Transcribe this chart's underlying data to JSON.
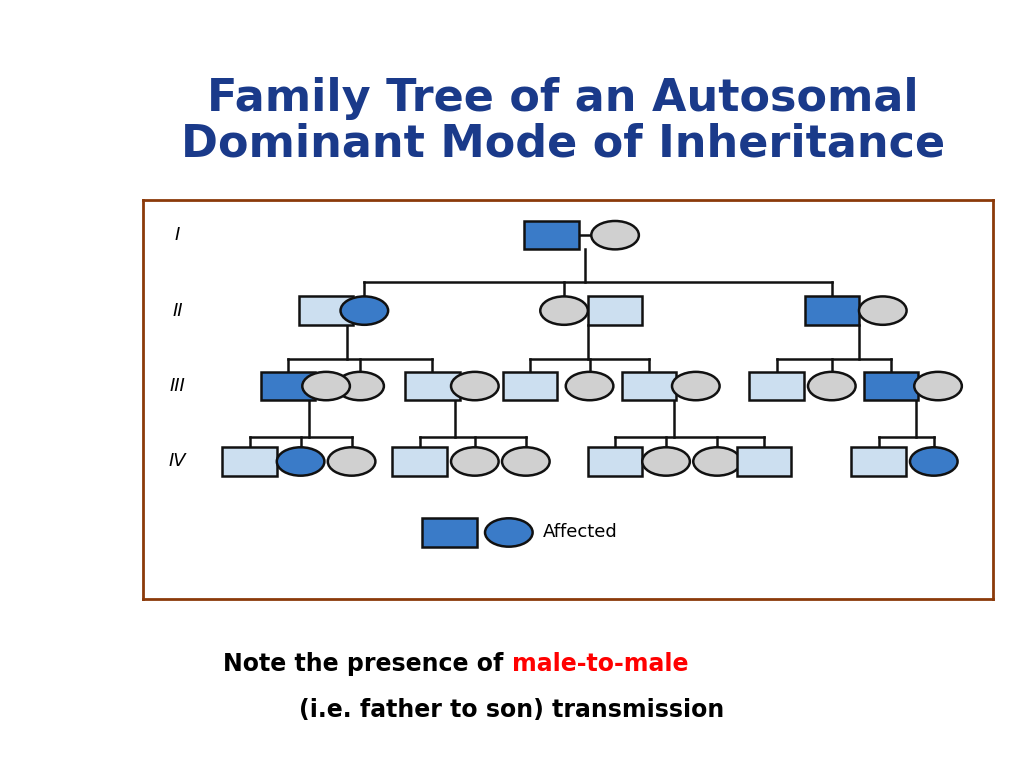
{
  "title_line1": "Family Tree of an Autosomal",
  "title_line2": "Dominant Mode of Inheritance",
  "title_color": "#1a3a8a",
  "title_fontsize": 32,
  "note_line1_black": "Note the presence of ",
  "note_line1_red": "male-to-male",
  "note_line2": "(i.e. father to son) transmission",
  "note_fontsize": 17,
  "bg_color": "#ffffff",
  "affected_color": "#3a7bc8",
  "unaffected_sq_fill": "#ccdff0",
  "unaffected_ci_fill": "#d0d0d0",
  "line_color": "#111111",
  "border_color": "#8B3A0A",
  "legend_label": "Affected",
  "gen_labels": [
    "I",
    "II",
    "III",
    "IV"
  ]
}
